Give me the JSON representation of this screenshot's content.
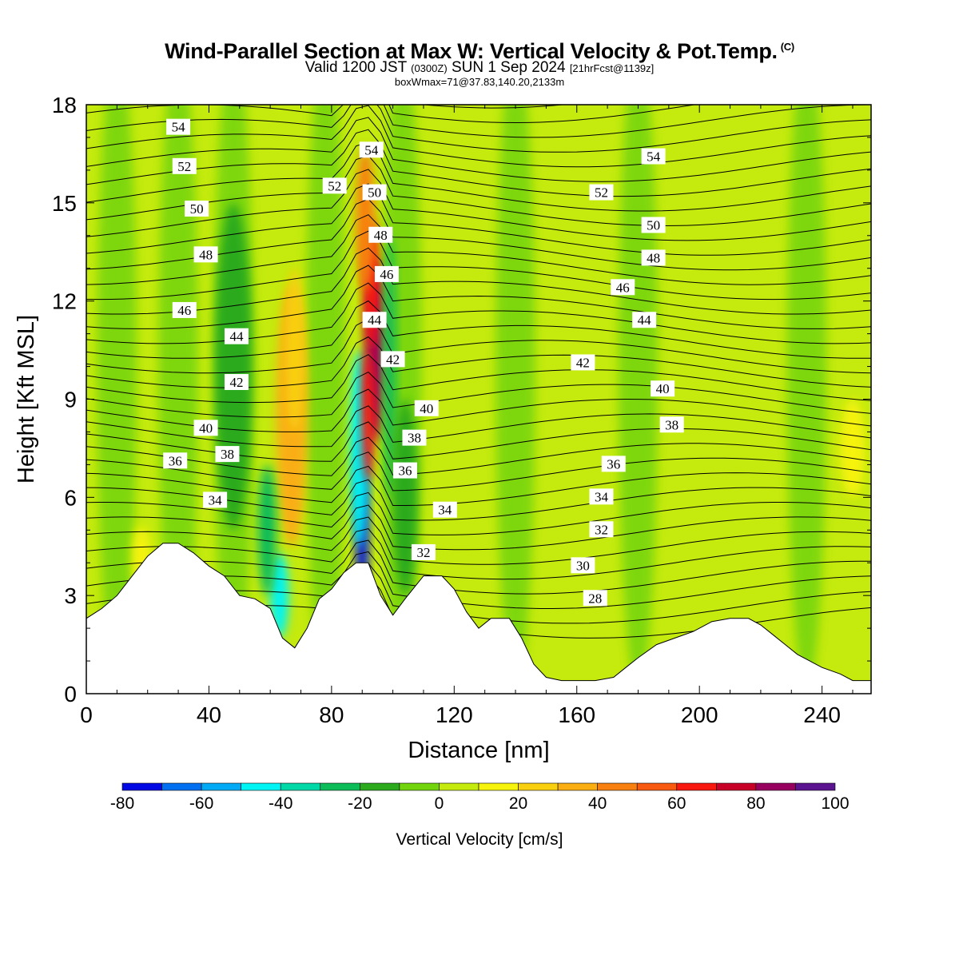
{
  "header": {
    "title": "Wind-Parallel Section at Max W: Vertical Velocity & Pot.Temp.",
    "copyright": "(C)",
    "valid_prefix": "Valid 1200 JST",
    "valid_utc": "(0300Z)",
    "valid_date": "SUN 1 Sep 2024",
    "forecast": "[21hrFcst@1139z]",
    "boxmax": "boxWmax=71@37.83,140.20,2133m"
  },
  "chart_data": {
    "type": "heatmap",
    "xlabel": "Distance [nm]",
    "ylabel": "Height [Kft MSL]",
    "xlim": [
      0,
      256
    ],
    "ylim": [
      0,
      18
    ],
    "x_ticks": [
      0,
      40,
      80,
      120,
      160,
      200,
      240
    ],
    "y_ticks": [
      0,
      3,
      6,
      9,
      12,
      15,
      18
    ],
    "grid": false,
    "colorbar": {
      "title": "Vertical Velocity [cm/s]",
      "boundaries": [
        -80,
        -70,
        -60,
        -50,
        -40,
        -30,
        -20,
        -10,
        0,
        10,
        20,
        30,
        40,
        50,
        60,
        70,
        80,
        90,
        100
      ],
      "tick_labels": [
        "-80",
        "-60",
        "-40",
        "-20",
        "0",
        "20",
        "40",
        "60",
        "80",
        "100"
      ],
      "colors": [
        "#0008e4",
        "#0070f0",
        "#00aaf4",
        "#00f4f4",
        "#00d8a8",
        "#0cbc58",
        "#2aaa1c",
        "#72d40c",
        "#c4ea0e",
        "#f6f30c",
        "#f8d010",
        "#faae12",
        "#f88010",
        "#f85a10",
        "#f81810",
        "#c80028",
        "#980060",
        "#5a1490"
      ]
    },
    "terrain_kft": [
      {
        "x": 0,
        "h": 2.3
      },
      {
        "x": 5,
        "h": 2.6
      },
      {
        "x": 10,
        "h": 3.0
      },
      {
        "x": 15,
        "h": 3.6
      },
      {
        "x": 20,
        "h": 4.2
      },
      {
        "x": 25,
        "h": 4.6
      },
      {
        "x": 30,
        "h": 4.6
      },
      {
        "x": 35,
        "h": 4.3
      },
      {
        "x": 40,
        "h": 3.9
      },
      {
        "x": 45,
        "h": 3.6
      },
      {
        "x": 50,
        "h": 3.0
      },
      {
        "x": 55,
        "h": 2.9
      },
      {
        "x": 60,
        "h": 2.6
      },
      {
        "x": 64,
        "h": 1.7
      },
      {
        "x": 68,
        "h": 1.4
      },
      {
        "x": 72,
        "h": 2.0
      },
      {
        "x": 76,
        "h": 2.9
      },
      {
        "x": 80,
        "h": 3.2
      },
      {
        "x": 84,
        "h": 3.7
      },
      {
        "x": 88,
        "h": 4.0
      },
      {
        "x": 92,
        "h": 4.0
      },
      {
        "x": 96,
        "h": 3.0
      },
      {
        "x": 100,
        "h": 2.4
      },
      {
        "x": 104,
        "h": 2.9
      },
      {
        "x": 110,
        "h": 3.6
      },
      {
        "x": 116,
        "h": 3.6
      },
      {
        "x": 120,
        "h": 3.2
      },
      {
        "x": 124,
        "h": 2.5
      },
      {
        "x": 128,
        "h": 2.0
      },
      {
        "x": 132,
        "h": 2.3
      },
      {
        "x": 138,
        "h": 2.3
      },
      {
        "x": 142,
        "h": 1.7
      },
      {
        "x": 146,
        "h": 0.9
      },
      {
        "x": 150,
        "h": 0.5
      },
      {
        "x": 155,
        "h": 0.4
      },
      {
        "x": 160,
        "h": 0.4
      },
      {
        "x": 166,
        "h": 0.4
      },
      {
        "x": 172,
        "h": 0.5
      },
      {
        "x": 176,
        "h": 0.8
      },
      {
        "x": 180,
        "h": 1.1
      },
      {
        "x": 186,
        "h": 1.5
      },
      {
        "x": 192,
        "h": 1.7
      },
      {
        "x": 198,
        "h": 1.9
      },
      {
        "x": 204,
        "h": 2.2
      },
      {
        "x": 210,
        "h": 2.3
      },
      {
        "x": 216,
        "h": 2.3
      },
      {
        "x": 220,
        "h": 2.1
      },
      {
        "x": 224,
        "h": 1.8
      },
      {
        "x": 228,
        "h": 1.5
      },
      {
        "x": 232,
        "h": 1.2
      },
      {
        "x": 236,
        "h": 1.0
      },
      {
        "x": 240,
        "h": 0.8
      },
      {
        "x": 246,
        "h": 0.6
      },
      {
        "x": 250,
        "h": 0.4
      },
      {
        "x": 256,
        "h": 0.4
      }
    ],
    "theta_labels": [
      {
        "text": "54",
        "x": 30,
        "y": 17.3
      },
      {
        "text": "52",
        "x": 32,
        "y": 16.1
      },
      {
        "text": "50",
        "x": 36,
        "y": 14.8
      },
      {
        "text": "48",
        "x": 39,
        "y": 13.4
      },
      {
        "text": "46",
        "x": 32,
        "y": 11.7
      },
      {
        "text": "44",
        "x": 49,
        "y": 10.9
      },
      {
        "text": "42",
        "x": 49,
        "y": 9.5
      },
      {
        "text": "40",
        "x": 39,
        "y": 8.1
      },
      {
        "text": "38",
        "x": 46,
        "y": 7.3
      },
      {
        "text": "36",
        "x": 29,
        "y": 7.1
      },
      {
        "text": "34",
        "x": 42,
        "y": 5.9
      },
      {
        "text": "52",
        "x": 81,
        "y": 15.5
      },
      {
        "text": "54",
        "x": 93,
        "y": 16.6
      },
      {
        "text": "50",
        "x": 94,
        "y": 15.3
      },
      {
        "text": "48",
        "x": 96,
        "y": 14.0
      },
      {
        "text": "46",
        "x": 98,
        "y": 12.8
      },
      {
        "text": "44",
        "x": 94,
        "y": 11.4
      },
      {
        "text": "42",
        "x": 100,
        "y": 10.2
      },
      {
        "text": "40",
        "x": 111,
        "y": 8.7
      },
      {
        "text": "38",
        "x": 107,
        "y": 7.8
      },
      {
        "text": "36",
        "x": 104,
        "y": 6.8
      },
      {
        "text": "34",
        "x": 117,
        "y": 5.6
      },
      {
        "text": "32",
        "x": 110,
        "y": 4.3
      },
      {
        "text": "54",
        "x": 185,
        "y": 16.4
      },
      {
        "text": "52",
        "x": 168,
        "y": 15.3
      },
      {
        "text": "50",
        "x": 185,
        "y": 14.3
      },
      {
        "text": "48",
        "x": 185,
        "y": 13.3
      },
      {
        "text": "46",
        "x": 175,
        "y": 12.4
      },
      {
        "text": "44",
        "x": 182,
        "y": 11.4
      },
      {
        "text": "42",
        "x": 162,
        "y": 10.1
      },
      {
        "text": "40",
        "x": 188,
        "y": 9.3
      },
      {
        "text": "38",
        "x": 191,
        "y": 8.2
      },
      {
        "text": "36",
        "x": 172,
        "y": 7.0
      },
      {
        "text": "34",
        "x": 168,
        "y": 6.0
      },
      {
        "text": "32",
        "x": 168,
        "y": 5.0
      },
      {
        "text": "30",
        "x": 162,
        "y": 3.9
      },
      {
        "text": "28",
        "x": 166,
        "y": 2.9
      }
    ],
    "velocity_features": [
      {
        "x": 90,
        "y": 5.0,
        "rx": 2,
        "ry": 3.0,
        "w": -80
      },
      {
        "x": 89,
        "y": 7.5,
        "rx": 3,
        "ry": 3.0,
        "w": -45
      },
      {
        "x": 94,
        "y": 10.5,
        "rx": 3,
        "ry": 2.8,
        "w": 85
      },
      {
        "x": 93,
        "y": 12.5,
        "rx": 2.5,
        "ry": 2.0,
        "w": 65
      },
      {
        "x": 92,
        "y": 8.5,
        "rx": 2,
        "ry": 2.0,
        "w": 60
      },
      {
        "x": 91,
        "y": 14.5,
        "rx": 3,
        "ry": 2.2,
        "w": 40
      },
      {
        "x": 67,
        "y": 8.5,
        "rx": 5,
        "ry": 4.0,
        "w": 32
      },
      {
        "x": 68,
        "y": 10.5,
        "rx": 3,
        "ry": 2.5,
        "w": 25
      },
      {
        "x": 63,
        "y": 3.0,
        "rx": 3,
        "ry": 1.3,
        "w": -45
      },
      {
        "x": 59,
        "y": 5.0,
        "rx": 3,
        "ry": 2.0,
        "w": -25
      },
      {
        "x": 99,
        "y": 10.0,
        "rx": 2,
        "ry": 4.0,
        "w": -30
      },
      {
        "x": 104,
        "y": 6.0,
        "rx": 4,
        "ry": 3.0,
        "w": -15
      },
      {
        "x": 48,
        "y": 10.0,
        "rx": 6,
        "ry": 5.0,
        "w": -12
      },
      {
        "x": 250,
        "y": 7.5,
        "rx": 4,
        "ry": 1.5,
        "w": 15
      },
      {
        "x": 18,
        "y": 4.2,
        "rx": 3,
        "ry": 0.9,
        "w": 15
      }
    ]
  }
}
